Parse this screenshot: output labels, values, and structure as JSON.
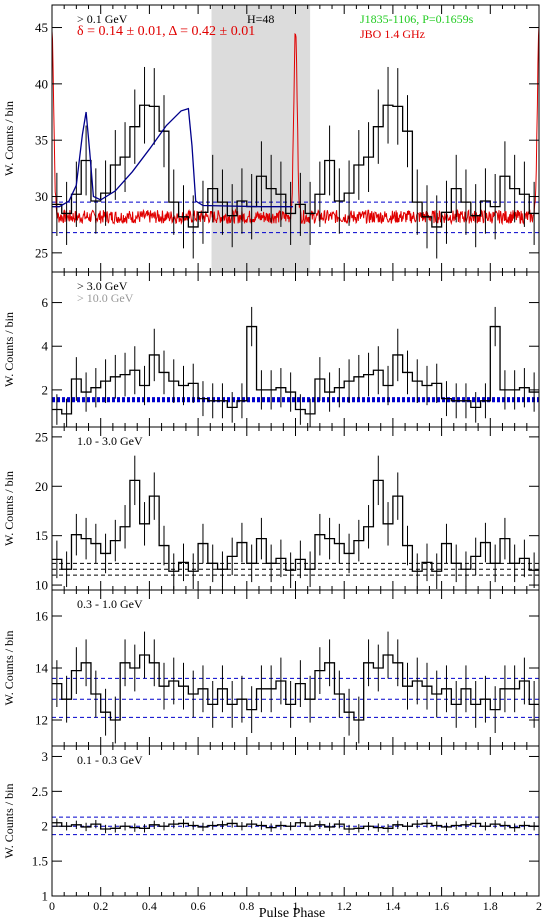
{
  "figure": {
    "xlabel": "Pulse Phase",
    "xlim": [
      0,
      2
    ],
    "xticks": [
      {
        "v": 0,
        "label": "0"
      },
      {
        "v": 0.2,
        "label": "0.2"
      },
      {
        "v": 0.4,
        "label": "0.4"
      },
      {
        "v": 0.6,
        "label": "0.6"
      },
      {
        "v": 0.8,
        "label": "0.8"
      },
      {
        "v": 1.0,
        "label": "1"
      },
      {
        "v": 1.2,
        "label": "1.2"
      },
      {
        "v": 1.4,
        "label": "1.4"
      },
      {
        "v": 1.6,
        "label": "1.6"
      },
      {
        "v": 1.8,
        "label": "1.8"
      },
      {
        "v": 2.0,
        "label": "2"
      }
    ],
    "colors": {
      "frame": "#000000",
      "histogram": "#000000",
      "radio": "#e00000",
      "fit": "#00008b",
      "background_level": "#0000cc",
      "shade": "#dcdcdc",
      "green_text": "#22cc22",
      "gray_text": "#999999"
    }
  },
  "chart_data": [
    {
      "type": "histogram",
      "ylabel": "W. Counts / bin",
      "ylim": [
        23.3,
        47
      ],
      "yticks": [
        {
          "v": 25,
          "label": "25"
        },
        {
          "v": 30,
          "label": "30"
        },
        {
          "v": 35,
          "label": "35"
        },
        {
          "v": 40,
          "label": "40"
        },
        {
          "v": 45,
          "label": "45"
        }
      ],
      "bins_per_cycle": 25,
      "values": [
        29.3,
        28.5,
        30.2,
        33.2,
        29.6,
        30.3,
        32.8,
        33.5,
        36.2,
        38.1,
        38.0,
        35.8,
        29.5,
        28.2,
        27.3,
        28.6,
        30.7,
        29.5,
        28.3,
        29.6,
        29.1,
        31.8,
        30.7,
        30.2,
        28.5
      ],
      "errors": [
        2.8,
        2.8,
        2.9,
        3.1,
        2.9,
        2.9,
        3.1,
        3.1,
        3.3,
        3.4,
        3.4,
        3.2,
        2.9,
        2.8,
        2.8,
        2.8,
        3.0,
        2.9,
        2.8,
        2.9,
        2.9,
        3.1,
        3.0,
        2.9,
        2.8
      ],
      "levels": [
        29.5,
        26.8
      ],
      "legend": [
        {
          "text": "> 0.1 GeV",
          "color": "#000000"
        },
        {
          "text": "δ = 0.14 ± 0.01, Δ = 0.42 ± 0.01",
          "color": "#e00000"
        }
      ],
      "annotations": [
        {
          "text": "H=48",
          "color": "#000000"
        },
        {
          "text": "J1835-1106, P=0.1659s",
          "color": "#22cc22"
        },
        {
          "text": "JBO 1.4 GHz",
          "color": "#e00000"
        }
      ],
      "shaded_phase": [
        0.655,
        1.06
      ],
      "radio_profile": {
        "baseline": 28.2,
        "peak_phase": 0.0,
        "peak_value": 44.7,
        "width": 0.007
      },
      "fit_curve": [
        {
          "x": 0.0,
          "y": 29.1
        },
        {
          "x": 0.03,
          "y": 29.1
        },
        {
          "x": 0.07,
          "y": 29.6
        },
        {
          "x": 0.1,
          "y": 31.0
        },
        {
          "x": 0.125,
          "y": 35.5
        },
        {
          "x": 0.14,
          "y": 37.5
        },
        {
          "x": 0.155,
          "y": 34.0
        },
        {
          "x": 0.17,
          "y": 30.0
        },
        {
          "x": 0.2,
          "y": 29.7
        },
        {
          "x": 0.26,
          "y": 30.5
        },
        {
          "x": 0.33,
          "y": 32.2
        },
        {
          "x": 0.4,
          "y": 34.2
        },
        {
          "x": 0.47,
          "y": 36.3
        },
        {
          "x": 0.53,
          "y": 37.6
        },
        {
          "x": 0.56,
          "y": 37.8
        },
        {
          "x": 0.575,
          "y": 34.5
        },
        {
          "x": 0.59,
          "y": 29.6
        },
        {
          "x": 0.62,
          "y": 29.2
        },
        {
          "x": 0.86,
          "y": 29.1
        },
        {
          "x": 0.99,
          "y": 29.1
        }
      ]
    },
    {
      "type": "histogram",
      "ylabel": "W. Counts / bin",
      "ylim": [
        0.3,
        7.4
      ],
      "yticks": [
        {
          "v": 2,
          "label": "2"
        },
        {
          "v": 4,
          "label": "4"
        },
        {
          "v": 6,
          "label": "6"
        }
      ],
      "bins_per_cycle": 25,
      "values": [
        1.1,
        0.9,
        2.5,
        1.9,
        2.1,
        2.4,
        2.6,
        2.7,
        2.9,
        2.2,
        3.6,
        2.8,
        2.4,
        2.2,
        2.3,
        1.6,
        1.5,
        1.5,
        1.2,
        1.5,
        2.1,
        2.0,
        2.0,
        2.1,
        1.9
      ],
      "errors": [
        0.7,
        0.7,
        1.0,
        0.9,
        0.9,
        1.0,
        1.0,
        1.0,
        1.1,
        0.9,
        1.2,
        1.0,
        1.0,
        0.9,
        0.9,
        0.8,
        0.8,
        0.8,
        0.7,
        0.8,
        0.9,
        0.9,
        0.9,
        0.9,
        0.9
      ],
      "overrides": [
        {
          "bin": 20,
          "value": 4.9
        },
        {
          "bin": 45,
          "value": 4.9
        }
      ],
      "levels": [
        1.5,
        1.6
      ],
      "legend": [
        {
          "text": "> 3.0 GeV",
          "color": "#000000"
        },
        {
          "text": "> 10.0 GeV",
          "color": "#999999"
        }
      ]
    },
    {
      "type": "histogram",
      "ylabel": "W. Counts / bin",
      "ylim": [
        9.5,
        26
      ],
      "yticks": [
        {
          "v": 10,
          "label": "10"
        },
        {
          "v": 15,
          "label": "15"
        },
        {
          "v": 20,
          "label": "20"
        },
        {
          "v": 25,
          "label": "25"
        }
      ],
      "bins_per_cycle": 25,
      "values": [
        12.6,
        11.6,
        15.1,
        14.7,
        14.2,
        13.2,
        14.5,
        15.9,
        20.6,
        16.2,
        19.0,
        14.0,
        11.4,
        12.3,
        11.4,
        14.2,
        12.2,
        11.6,
        12.9,
        14.3,
        12.2,
        14.7,
        12.2,
        12.7,
        11.5
      ],
      "errors": [
        1.9,
        1.8,
        2.1,
        2.1,
        2.0,
        2.0,
        2.1,
        2.2,
        2.5,
        2.2,
        2.4,
        2.0,
        1.8,
        1.9,
        1.8,
        2.0,
        1.9,
        1.8,
        1.9,
        2.0,
        1.9,
        2.1,
        1.9,
        1.9,
        1.8
      ],
      "levels": [
        12.2,
        11.6,
        11.0
      ],
      "legend": [
        {
          "text": "1.0 - 3.0 GeV",
          "color": "#000000"
        }
      ]
    },
    {
      "type": "histogram",
      "ylabel": "W. Counts / bin",
      "ylim": [
        11.0,
        17.0
      ],
      "yticks": [
        {
          "v": 12,
          "label": "12"
        },
        {
          "v": 14,
          "label": "14"
        },
        {
          "v": 16,
          "label": "16"
        }
      ],
      "bins_per_cycle": 25,
      "values": [
        13.4,
        12.8,
        13.9,
        14.2,
        13.0,
        12.3,
        12.0,
        14.2,
        14.0,
        14.5,
        14.2,
        13.3,
        13.5,
        13.3,
        13.0,
        13.2,
        12.6,
        13.2,
        12.6,
        12.8,
        12.4,
        13.2,
        13.2,
        13.5,
        12.6
      ],
      "errors": [
        0.9,
        0.9,
        0.9,
        0.9,
        0.9,
        0.9,
        0.9,
        0.9,
        0.9,
        0.9,
        0.9,
        0.9,
        0.9,
        0.9,
        0.9,
        0.9,
        0.9,
        0.9,
        0.9,
        0.9,
        0.9,
        0.9,
        0.9,
        0.9,
        0.9
      ],
      "levels": [
        13.6,
        12.8,
        12.1
      ],
      "legend": [
        {
          "text": "0.3 - 1.0 GeV",
          "color": "#000000"
        }
      ]
    },
    {
      "type": "histogram",
      "ylabel": "W. Counts / bin",
      "ylim": [
        1.0,
        3.15
      ],
      "yticks": [
        {
          "v": 1,
          "label": "1"
        },
        {
          "v": 1.5,
          "label": "1.5"
        },
        {
          "v": 2,
          "label": "2"
        },
        {
          "v": 2.5,
          "label": "2.5"
        },
        {
          "v": 3,
          "label": "3"
        }
      ],
      "bins_per_cycle": 25,
      "values": [
        2.05,
        2.0,
        2.02,
        1.99,
        2.03,
        1.96,
        1.97,
        2.0,
        1.98,
        1.97,
        2.02,
        2.0,
        2.03,
        2.04,
        2.01,
        1.99,
        2.01,
        2.02,
        2.04,
        2.0,
        2.03,
        2.01,
        1.98,
        2.01,
        2.0
      ],
      "errors": [
        0.06,
        0.06,
        0.06,
        0.06,
        0.06,
        0.06,
        0.06,
        0.06,
        0.06,
        0.06,
        0.06,
        0.06,
        0.06,
        0.06,
        0.06,
        0.06,
        0.06,
        0.06,
        0.06,
        0.06,
        0.06,
        0.06,
        0.06,
        0.06,
        0.06
      ],
      "levels": [
        2.13,
        2.0,
        1.88
      ],
      "legend": [
        {
          "text": "0.1 - 0.3 GeV",
          "color": "#000000"
        }
      ]
    }
  ]
}
